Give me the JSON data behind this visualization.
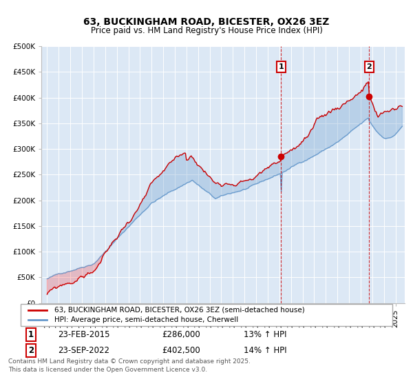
{
  "title": "63, BUCKINGHAM ROAD, BICESTER, OX26 3EZ",
  "subtitle": "Price paid vs. HM Land Registry's House Price Index (HPI)",
  "background_color": "#ffffff",
  "plot_bg_color": "#dce8f5",
  "grid_color": "#ffffff",
  "line1_color": "#cc0000",
  "line2_color": "#6699cc",
  "vline_color": "#cc0000",
  "annotation_box_color": "#cc0000",
  "legend_line1": "63, BUCKINGHAM ROAD, BICESTER, OX26 3EZ (semi-detached house)",
  "legend_line2": "HPI: Average price, semi-detached house, Cherwell",
  "transaction1_date": "23-FEB-2015",
  "transaction1_price": "£286,000",
  "transaction1_hpi": "13% ↑ HPI",
  "transaction1_label": "1",
  "transaction1_year": 2015.14,
  "transaction2_date": "23-SEP-2022",
  "transaction2_price": "£402,500",
  "transaction2_hpi": "14% ↑ HPI",
  "transaction2_label": "2",
  "transaction2_year": 2022.73,
  "footer": "Contains HM Land Registry data © Crown copyright and database right 2025.\nThis data is licensed under the Open Government Licence v3.0.",
  "ylim_max": 500000,
  "ylim_min": 0,
  "xmin": 1994.5,
  "xmax": 2025.8
}
